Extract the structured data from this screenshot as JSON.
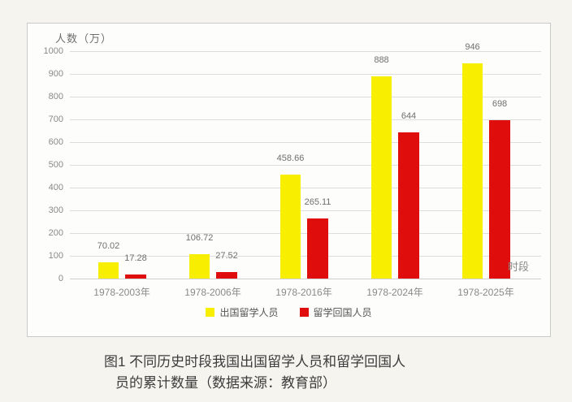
{
  "chart_data": {
    "type": "bar",
    "y_axis_label": "人数（万）",
    "x_axis_label": "时段",
    "categories": [
      "1978-2003年",
      "1978-2006年",
      "1978-2016年",
      "1978-2024年",
      "1978-2025年"
    ],
    "series": [
      {
        "name": "出国留学人员",
        "color": "#f8ef00",
        "values": [
          70.02,
          106.72,
          458.66,
          888,
          946
        ]
      },
      {
        "name": "留学回国人员",
        "color": "#e00d0d",
        "values": [
          17.28,
          27.52,
          265.11,
          644,
          698
        ]
      }
    ],
    "ylim": [
      0,
      1000
    ],
    "y_ticks": [
      0,
      100,
      200,
      300,
      400,
      500,
      600,
      700,
      800,
      900,
      1000
    ],
    "grid": true,
    "legend_position": "bottom",
    "data_labels": true
  },
  "caption": {
    "line1": "图1 不同历史时段我国出国留学人员和留学回国人",
    "line2": "员的累计数量（数据来源：教育部）"
  }
}
